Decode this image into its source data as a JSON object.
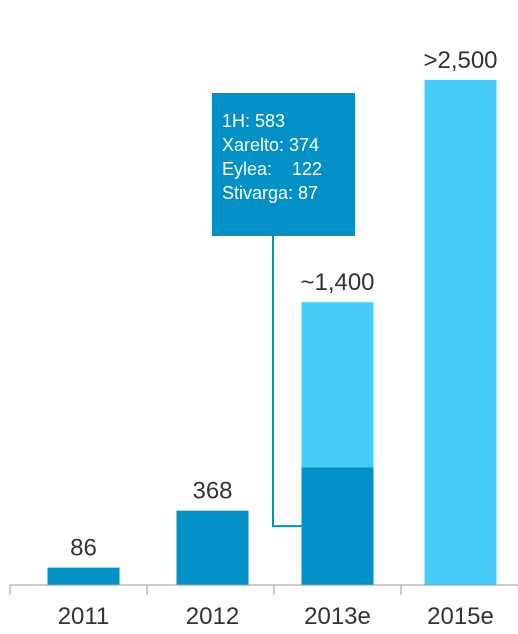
{
  "chart_data": {
    "type": "bar",
    "stacked": true,
    "categories": [
      "2011",
      "2012",
      "2013e",
      "2015e"
    ],
    "series": [
      {
        "values": [
          86,
          368,
          583,
          0
        ],
        "color": "#0291C6"
      },
      {
        "values": [
          0,
          0,
          817,
          2500
        ],
        "color": "#47CBFB"
      }
    ],
    "value_labels": [
      "86",
      "368",
      "~1,400",
      ">2,500"
    ],
    "totals": [
      86,
      368,
      1400,
      2500
    ],
    "ylim": [
      0,
      2600
    ],
    "grid": false,
    "annotation": {
      "target_category": "2013e",
      "lines": [
        "1H: 583",
        "Xarelto: 374",
        "Eylea:    122",
        "Stivarga: 87"
      ],
      "color": "#0291C6"
    },
    "axis_color": "#999999"
  }
}
